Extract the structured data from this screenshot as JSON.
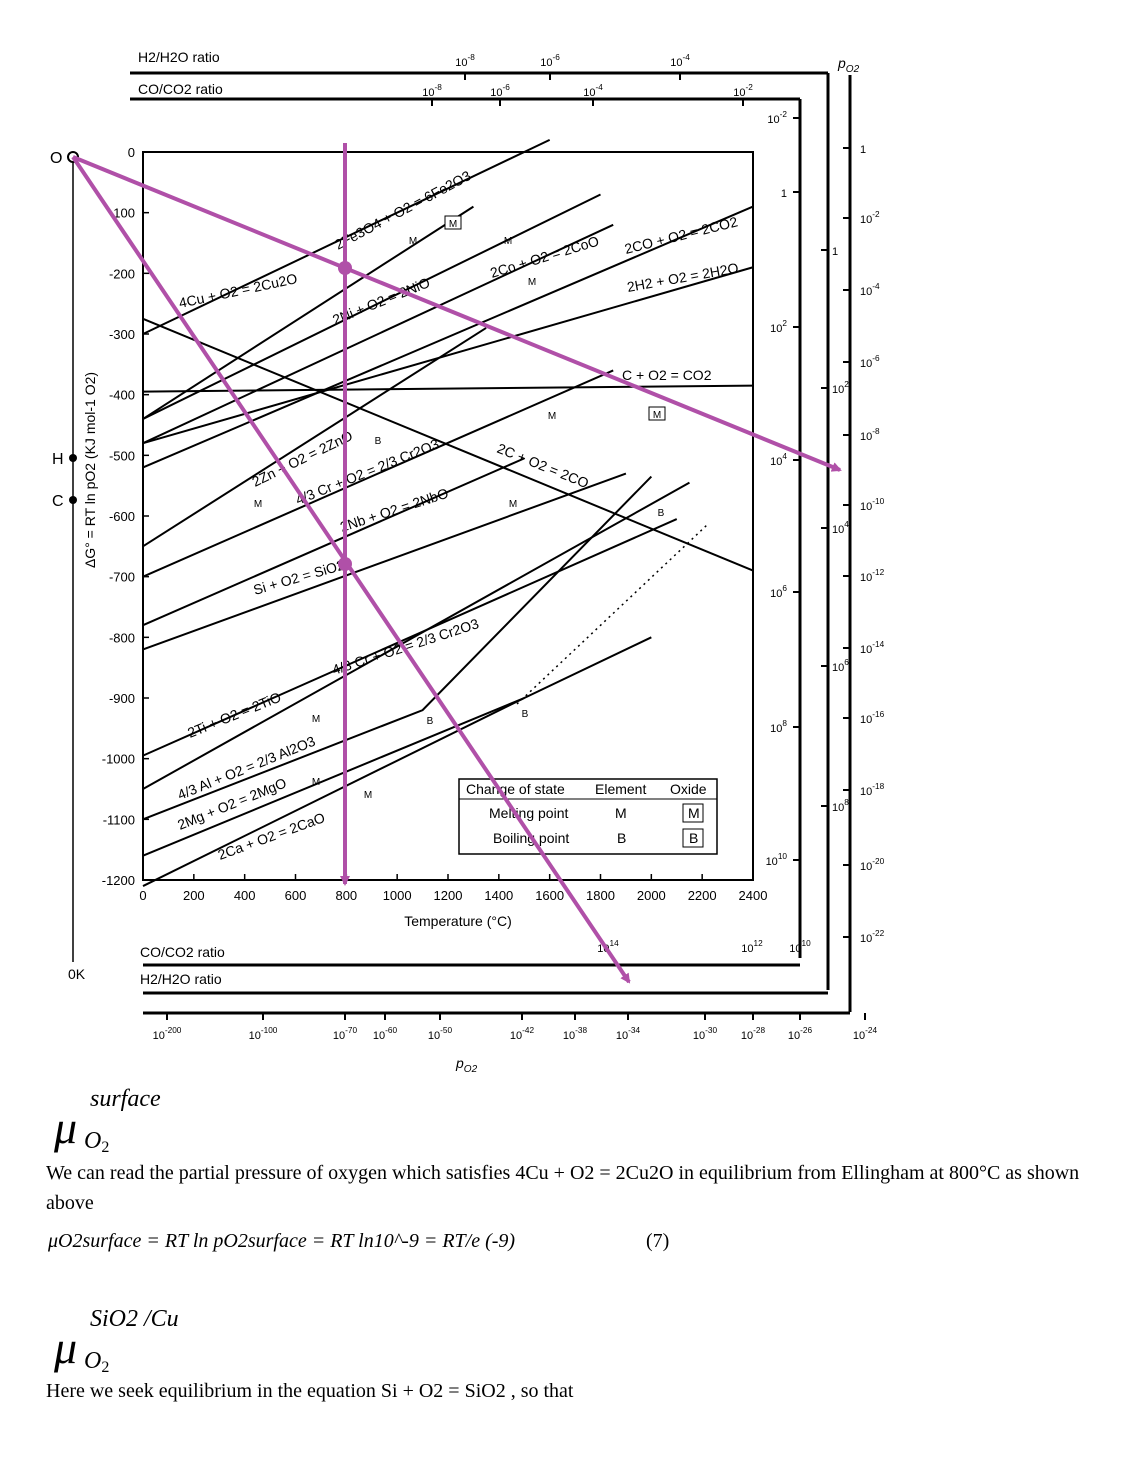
{
  "diagram": {
    "top_scales": {
      "h2_h2o_label": "H2/H2O ratio",
      "h2_h2o_ticks": [
        "10^-8",
        "10^-6",
        "10^-4"
      ],
      "co_co2_label": "CO/CO2 ratio",
      "co_co2_ticks": [
        "10^-8",
        "10^-6",
        "10^-4",
        "10^-2"
      ]
    },
    "bottom_scales": {
      "co_co2_label": "CO/CO2 ratio",
      "co_co2_ticks": [
        "10^14",
        "10^12",
        "10^10"
      ],
      "h2_h2o_label": "H2/H2O ratio",
      "po2_label": "pO2",
      "po2_ticks": [
        "10^-200",
        "10^-100",
        "10^-70",
        "10^-60",
        "10^-50",
        "10^-42",
        "10^-38",
        "10^-34",
        "10^-30",
        "10^-28",
        "10^-26",
        "10^-24"
      ]
    },
    "right_scales": {
      "po2_label": "pO2",
      "po2_ticks": [
        "1",
        "10^-2",
        "10^-4",
        "10^-6",
        "10^-8",
        "10^-10",
        "10^-12",
        "10^-14",
        "10^-16",
        "10^-18",
        "10^-20",
        "10^-22"
      ],
      "co_co2_ticks": [
        "10^-2",
        "1",
        "10^2",
        "10^4",
        "10^6",
        "10^8",
        "10^10"
      ],
      "h2_h2o_ticks": [
        "1",
        "10^2",
        "10^4",
        "10^6",
        "10^8"
      ]
    },
    "left_points": {
      "O": "O",
      "H": "H",
      "C": "C",
      "zero_k": "0K"
    },
    "reaction_labels": [
      "2Fe3O4 + O2 = 6Fe2O3",
      "4Cu + O2 = 2Cu2O",
      "2Ni + O2 = 2NiO",
      "2Co + O2 = 2CoO",
      "2CO + O2 = 2CO2",
      "2H2 + O2 = 2H2O",
      "C + O2 = CO2",
      "2Zn + O2 = 2ZnO",
      "4/3 Cr + O2 = 2/3 Cr2O3",
      "2C + O2 = 2CO",
      "2Nb + O2 = 2NbO",
      "Si + O2 = SiO2",
      "4/3 Cr + O2 = 2/3 Cr2O3",
      "2Ti + O2 = 2TiO",
      "4/3 Al + O2 = 2/3 Al2O3",
      "2Mg + O2 = 2MgO",
      "2Ca + O2 = 2CaO"
    ],
    "legend": {
      "header": [
        "Change of state",
        "Element",
        "Oxide"
      ],
      "rows": [
        {
          "label": "Melting point",
          "element": "M",
          "oxide": "M"
        },
        {
          "label": "Boiling point",
          "element": "B",
          "oxide": "B"
        }
      ]
    },
    "accent_color": "#b050a8"
  },
  "chart_data": {
    "type": "line",
    "xlabel": "Temperature (°C)",
    "ylabel": "ΔG° = RT ln pO2 (KJ mol-1 O2)",
    "xlim": [
      0,
      2400
    ],
    "ylim": [
      -1200,
      0
    ],
    "x_ticks": [
      0,
      200,
      400,
      600,
      800,
      1000,
      1200,
      1400,
      1600,
      1800,
      2000,
      2200,
      2400
    ],
    "y_ticks": [
      0,
      -100,
      -200,
      -300,
      -400,
      -500,
      -600,
      -700,
      -800,
      -900,
      -1000,
      -1100,
      -1200
    ],
    "series": [
      {
        "name": "2Fe3O4 + O2 = 6Fe2O3",
        "x": [
          0,
          1300
        ],
        "y": [
          -440,
          -90
        ]
      },
      {
        "name": "4Cu + O2 = 2Cu2O",
        "x": [
          0,
          1600
        ],
        "y": [
          -300,
          20
        ]
      },
      {
        "name": "2Ni + O2 = 2NiO",
        "x": [
          0,
          1800
        ],
        "y": [
          -440,
          -70
        ]
      },
      {
        "name": "2Co + O2 = 2CoO",
        "x": [
          0,
          1850
        ],
        "y": [
          -480,
          -120
        ]
      },
      {
        "name": "2CO + O2 = 2CO2",
        "x": [
          0,
          2400
        ],
        "y": [
          -520,
          -90
        ]
      },
      {
        "name": "2H2 + O2 = 2H2O",
        "x": [
          0,
          2400
        ],
        "y": [
          -480,
          -190
        ]
      },
      {
        "name": "C + O2 = CO2",
        "x": [
          0,
          2400
        ],
        "y": [
          -395,
          -385
        ]
      },
      {
        "name": "2Zn + O2 = 2ZnO",
        "x": [
          0,
          1350
        ],
        "y": [
          -650,
          -290
        ]
      },
      {
        "name": "4/3 Cr + O2 = 2/3 Cr2O3 (upper)",
        "x": [
          0,
          1850
        ],
        "y": [
          -700,
          -360
        ]
      },
      {
        "name": "2C + O2 = 2CO",
        "x": [
          0,
          2400
        ],
        "y": [
          -275,
          -690
        ]
      },
      {
        "name": "2Nb + O2 = 2NbO",
        "x": [
          0,
          1500
        ],
        "y": [
          -780,
          -505
        ]
      },
      {
        "name": "Si + O2 = SiO2",
        "x": [
          0,
          1900
        ],
        "y": [
          -820,
          -530
        ]
      },
      {
        "name": "4/3 Cr + O2 = 2/3 Cr2O3 (lower)",
        "x": [
          0,
          2100
        ],
        "y": [
          -995,
          -605
        ]
      },
      {
        "name": "2Ti + O2 = 2TiO",
        "x": [
          0,
          2150
        ],
        "y": [
          -1050,
          -545
        ]
      },
      {
        "name": "4/3 Al + O2 = 2/3 Al2O3",
        "x": [
          0,
          1100,
          2000
        ],
        "y": [
          -1100,
          -920,
          -535
        ]
      },
      {
        "name": "2Mg + O2 = 2MgO",
        "x": [
          0,
          1500,
          2000
        ],
        "y": [
          -1160,
          -900,
          -800
        ]
      },
      {
        "name": "2Ca + O2 = 2CaO",
        "x": [
          0,
          1500
        ],
        "y": [
          -1210,
          -900
        ]
      }
    ]
  },
  "text": {
    "mu_surface": {
      "symbol": "μ",
      "sup": "surface",
      "sub": "O",
      "sub2": "2"
    },
    "para1": "We can read the partial pressure of oxygen which satisfies 4Cu + O2 = 2Cu2O in equilibrium from Ellingham at 800°C as shown above",
    "eq7": "μO2surface = RT ln pO2surface = RT ln10^-9 = RT/e (-9)",
    "eq7_number": "(7)",
    "mu_sio2": {
      "symbol": "μ",
      "sup": "SiO2 /Cu",
      "sub": "O",
      "sub2": "2"
    },
    "para2": "Here we seek equilibrium in the equation Si + O2 = SiO2 , so that"
  }
}
